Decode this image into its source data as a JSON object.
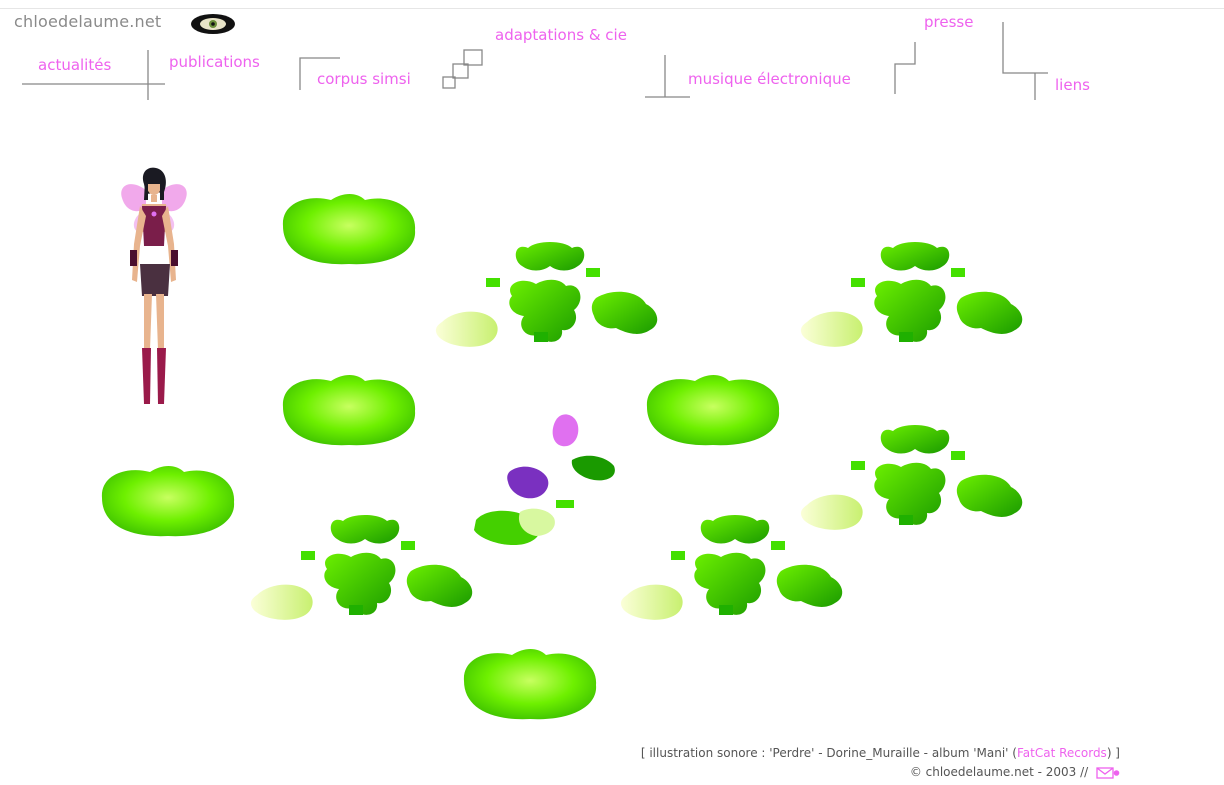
{
  "site": {
    "title": "chloedelaume.net",
    "logo_icon": "eye-logo-icon"
  },
  "nav": {
    "actualites": "actualités",
    "publications": "publications",
    "corpus_simsi": "corpus simsi",
    "adaptations": "adaptations & cie",
    "musique": "musique électronique",
    "presse": "presse",
    "liens": "liens"
  },
  "scene": {
    "figure_icon": "fairy-avatar-icon",
    "clover_icon": "green-clover-icon",
    "flower_icon": "purple-flower-icon"
  },
  "footer": {
    "line1_prefix": "[ illustration sonore : 'Perdre' - Dorine_Muraille - album 'Mani' (",
    "label": "FatCat Records",
    "line1_suffix": ") ]",
    "line2": "© chloedelaume.net - 2003 // ",
    "mail_icon": "envelope-icon"
  },
  "colors": {
    "link": "#ee62ee",
    "title": "#8a8a8a",
    "green_light": "#c8ff60",
    "green_main": "#44e000",
    "green_dark": "#1a9a00"
  }
}
